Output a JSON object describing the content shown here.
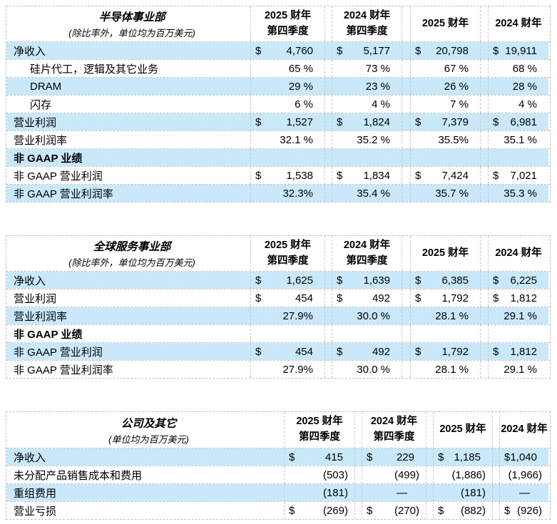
{
  "colors": {
    "row_highlight": "#C9E9FB"
  },
  "tables": [
    {
      "title": "半导体事业部",
      "subtitle": "(除比率外，单位均为百万美元)",
      "col_headers": [
        {
          "l1": "2025 财年",
          "l2": "第四季度"
        },
        {
          "l1": "2024 财年",
          "l2": "第四季度"
        },
        {
          "l1": "2025 财年",
          "l2": ""
        },
        {
          "l1": "2024 财年",
          "l2": ""
        }
      ],
      "rows": [
        {
          "label": "净收入",
          "cells": [
            {
              "cur": "$",
              "val": "4,760"
            },
            {
              "cur": "$",
              "val": "5,177"
            },
            {
              "cur": "$",
              "val": "20,798"
            },
            {
              "cur": "$",
              "val": "19,911"
            }
          ]
        },
        {
          "label": "硅片代工，逻辑及其它业务",
          "cells": [
            {
              "val": "65 %"
            },
            {
              "val": "73 %"
            },
            {
              "val": "67 %"
            },
            {
              "val": "68 %"
            }
          ]
        },
        {
          "label": "DRAM",
          "cells": [
            {
              "val": "29 %"
            },
            {
              "val": "23 %"
            },
            {
              "val": "26 %"
            },
            {
              "val": "28 %"
            }
          ]
        },
        {
          "label": "闪存",
          "cells": [
            {
              "val": "6 %"
            },
            {
              "val": "4 %"
            },
            {
              "val": "7 %"
            },
            {
              "val": "4 %"
            }
          ]
        },
        {
          "label": "营业利润",
          "cells": [
            {
              "cur": "$",
              "val": "1,527"
            },
            {
              "cur": "$",
              "val": "1,824"
            },
            {
              "cur": "$",
              "val": "7,379"
            },
            {
              "cur": "$",
              "val": "6,981"
            }
          ]
        },
        {
          "label": "营业利润率",
          "cells": [
            {
              "val": "32.1 %"
            },
            {
              "val": "35.2 %"
            },
            {
              "val": "35.5%"
            },
            {
              "val": "35.1 %"
            }
          ]
        },
        {
          "label": "非 GAAP 业绩",
          "cells": [
            {},
            {},
            {},
            {}
          ]
        },
        {
          "label": "非 GAAP 营业利润",
          "cells": [
            {
              "cur": "$",
              "val": "1,538"
            },
            {
              "cur": "$",
              "val": "1,834"
            },
            {
              "cur": "$",
              "val": "7,424"
            },
            {
              "cur": "$",
              "val": "7,021"
            }
          ]
        },
        {
          "label": "非 GAAP 营业利润率",
          "cells": [
            {
              "val": "32.3%"
            },
            {
              "val": "35.4 %"
            },
            {
              "val": "35.7 %"
            },
            {
              "val": "35.3 %"
            }
          ]
        }
      ]
    },
    {
      "title": "全球服务事业部",
      "subtitle": "(除比率外，单位均为百万美元)",
      "col_headers": [
        {
          "l1": "2025 财年",
          "l2": "第四季度"
        },
        {
          "l1": "2024 财年",
          "l2": "第四季度"
        },
        {
          "l1": "2025 财年",
          "l2": ""
        },
        {
          "l1": "2024 财年",
          "l2": ""
        }
      ],
      "rows": [
        {
          "label": "净收入",
          "cells": [
            {
              "cur": "$",
              "val": "1,625"
            },
            {
              "cur": "$",
              "val": "1,639"
            },
            {
              "cur": "$",
              "val": "6,385"
            },
            {
              "cur": "$",
              "val": "6,225"
            }
          ]
        },
        {
          "label": "营业利润",
          "cells": [
            {
              "cur": "$",
              "val": "454"
            },
            {
              "cur": "$",
              "val": "492"
            },
            {
              "cur": "$",
              "val": "1,792"
            },
            {
              "cur": "$",
              "val": "1,812"
            }
          ]
        },
        {
          "label": "营业利润率",
          "cells": [
            {
              "val": "27.9%"
            },
            {
              "val": "30.0 %"
            },
            {
              "val": "28.1 %"
            },
            {
              "val": "29.1 %"
            }
          ]
        },
        {
          "label": "非 GAAP 业绩",
          "cells": [
            {},
            {},
            {},
            {}
          ]
        },
        {
          "label": "非 GAAP 营业利润",
          "cells": [
            {
              "cur": "$",
              "val": "454"
            },
            {
              "cur": "$",
              "val": "492"
            },
            {
              "cur": "$",
              "val": "1,792"
            },
            {
              "cur": "$",
              "val": "1,812"
            }
          ]
        },
        {
          "label": "非 GAAP 营业利润率",
          "cells": [
            {
              "val": "27.9%"
            },
            {
              "val": "30.0 %"
            },
            {
              "val": "28.1 %"
            },
            {
              "val": "29.1 %"
            }
          ]
        }
      ]
    },
    {
      "title": "公司及其它",
      "subtitle": "(单位均为百万美元)",
      "col_headers": [
        {
          "l1": "2025 财年",
          "l2": "第四季度"
        },
        {
          "l1": "2024 财年",
          "l2": "第四季度"
        },
        {
          "l1": "2025 财年",
          "l2": ""
        },
        {
          "l1": "2024 财年",
          "l2": ""
        }
      ],
      "rows": [
        {
          "label": "净收入",
          "cells": [
            {
              "cur": "$",
              "val": "415"
            },
            {
              "cur": "$",
              "val": "229"
            },
            {
              "cur": "$",
              "val": "1,185"
            },
            {
              "cur": "$",
              "val": "1,040"
            }
          ]
        },
        {
          "label": "未分配产品销售成本和费用",
          "cells": [
            {
              "val": "(503)"
            },
            {
              "val": "(499)"
            },
            {
              "val": "(1,886)"
            },
            {
              "val": "(1,966)"
            }
          ]
        },
        {
          "label": "重组费用",
          "cells": [
            {
              "val": "(181)"
            },
            {
              "val": "—"
            },
            {
              "val": "(181)"
            },
            {
              "val": "—"
            }
          ]
        },
        {
          "label": "营业亏损",
          "cells": [
            {
              "cur": "$",
              "val": "(269)"
            },
            {
              "cur": "$",
              "val": "(270)"
            },
            {
              "cur": "$",
              "val": "(882)"
            },
            {
              "cur": "$",
              "val": "(926)"
            }
          ]
        }
      ]
    }
  ]
}
